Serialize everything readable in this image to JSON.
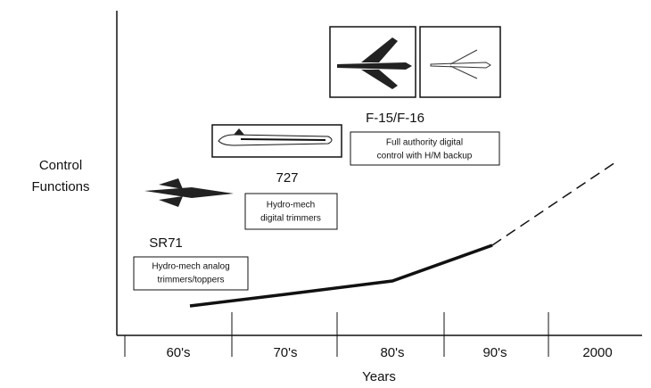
{
  "y_axis_label": [
    "Control",
    "Functions"
  ],
  "x_axis_label": "Years",
  "periods": [
    "60's",
    "70's",
    "80's",
    "90's",
    "2000"
  ],
  "milestones": [
    {
      "name": "SR71",
      "caption": [
        "Hydro-mech analog",
        "trimmers/toppers"
      ]
    },
    {
      "name": "727",
      "caption": [
        "Hydro-mech",
        "digital trimmers"
      ]
    },
    {
      "name": "F-15/F-16",
      "caption": [
        "Full authority digital",
        "control with H/M backup"
      ]
    }
  ]
}
